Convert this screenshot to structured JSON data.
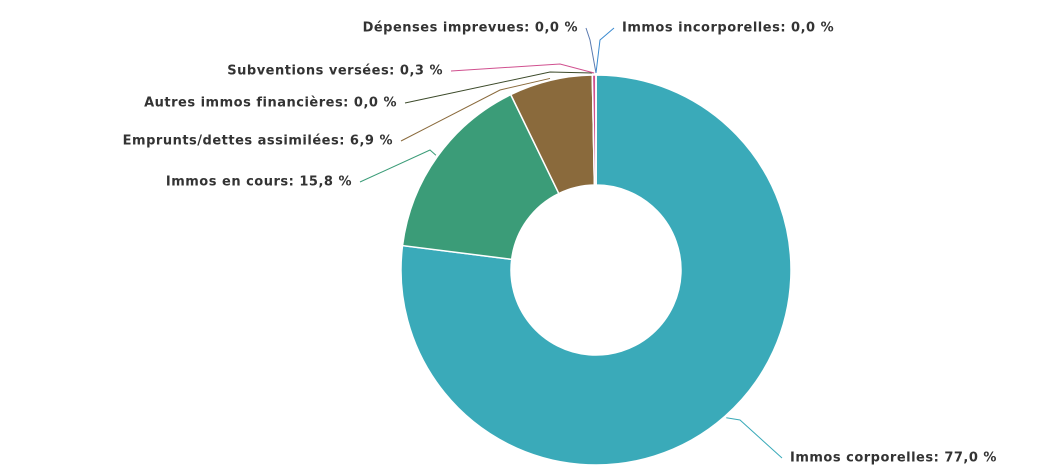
{
  "chart_data": {
    "type": "donut",
    "values": [
      77.0,
      15.8,
      6.9,
      0.0,
      0.3,
      0.0,
      0.0
    ],
    "value_labels": [
      "Immos corporelles: 77,0 %",
      "Immos en cours: 15,8 %",
      "Emprunts/dettes assimilées: 6,9 %",
      "Autres immos financières: 0,0 %",
      "Subventions versées: 0,3 %",
      "Dépenses imprevues: 0,0 %",
      "Immos incorporelles: 0,0 %"
    ],
    "colors": [
      "#3aaab9",
      "#3b9c78",
      "#8a6a3c",
      "#3c4a2a",
      "#d0508f",
      "#5a7ab0",
      "#3a8ad0"
    ]
  }
}
